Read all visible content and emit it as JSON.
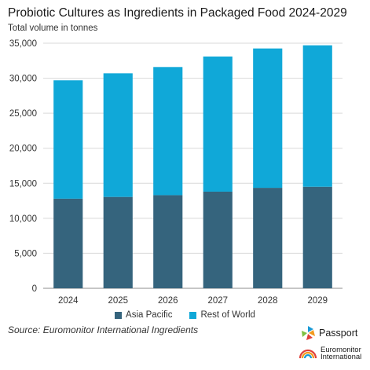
{
  "chart_data": {
    "type": "bar",
    "stacked": true,
    "title": "Probiotic Cultures as Ingredients in Packaged Food 2024-2029",
    "subtitle": "Total volume in tonnes",
    "categories": [
      "2024",
      "2025",
      "2026",
      "2027",
      "2028",
      "2029"
    ],
    "series": [
      {
        "name": "Asia Pacific",
        "color": "#35647d",
        "values": [
          12800,
          13050,
          13300,
          13800,
          14350,
          14500
        ]
      },
      {
        "name": "Rest of World",
        "color": "#10a8d8",
        "values": [
          16900,
          17650,
          18300,
          19300,
          19900,
          20200
        ]
      }
    ],
    "ylim": [
      0,
      35000
    ],
    "yticks": [
      "0",
      "5,000",
      "10,000",
      "15,000",
      "20,000",
      "25,000",
      "30,000",
      "35,000"
    ],
    "ytick_values": [
      0,
      5000,
      10000,
      15000,
      20000,
      25000,
      30000,
      35000
    ],
    "grid": true,
    "legend": "bottom",
    "source": "Source: Euromonitor International Ingredients"
  },
  "branding": {
    "passport_label": "Passport",
    "euromonitor_line1": "Euromonitor",
    "euromonitor_line2": "International"
  }
}
